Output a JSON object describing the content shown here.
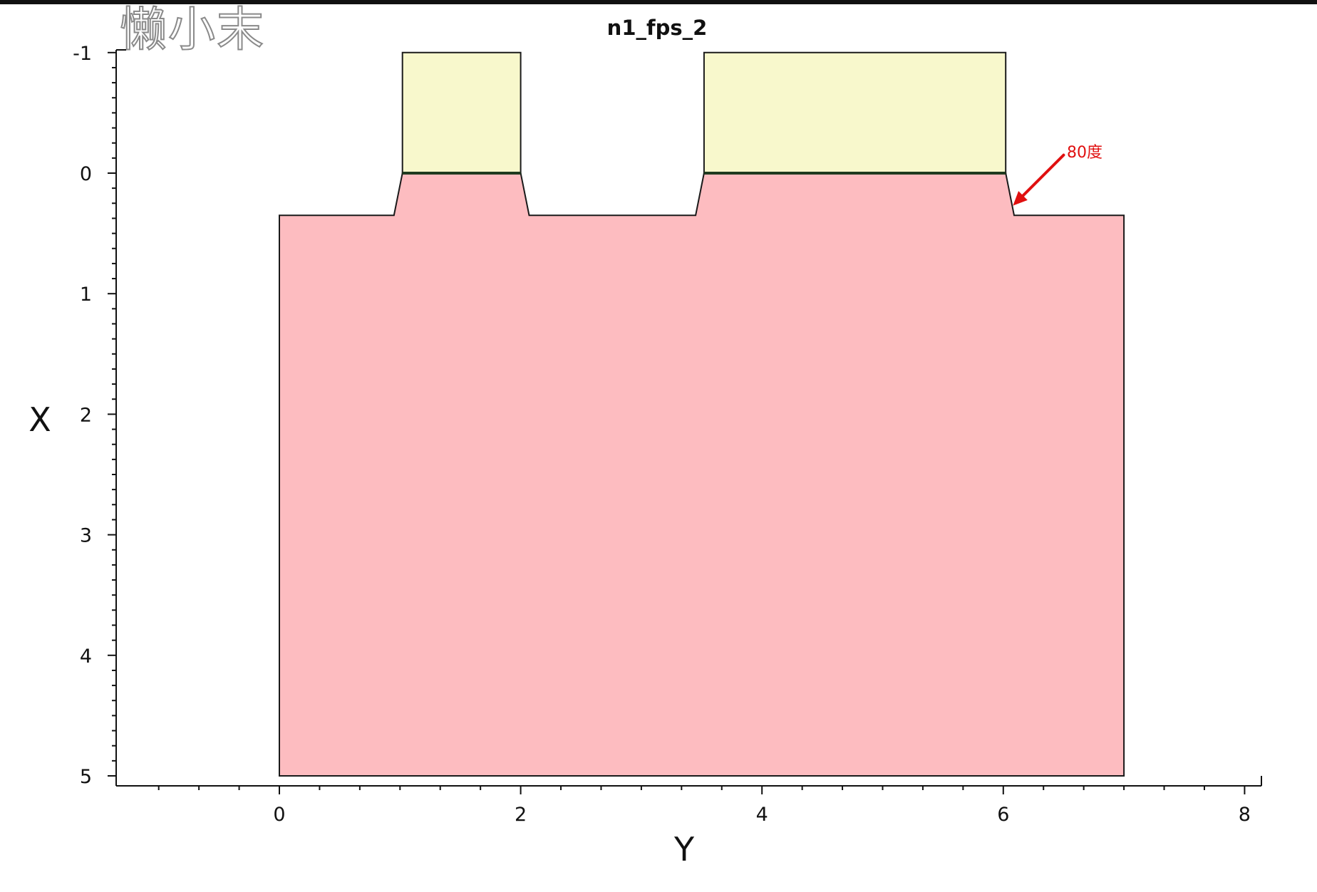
{
  "watermark": "懒小末",
  "chart_data": {
    "type": "area",
    "title": "n1_fps_2",
    "xlabel": "Y",
    "ylabel": "X",
    "xlim": [
      -1.35,
      8.2
    ],
    "ylim": [
      5.1,
      -1.05
    ],
    "x_ticks": [
      "0",
      "2",
      "4",
      "6",
      "8"
    ],
    "y_ticks": [
      "-1",
      "0",
      "1",
      "2",
      "3",
      "4",
      "5"
    ],
    "grid": false,
    "regions": [
      {
        "material": "substrate",
        "color": "#fdbcc0",
        "outline": [
          [
            0,
            5
          ],
          [
            0,
            0.35
          ],
          [
            0.95,
            0.35
          ],
          [
            1.02,
            0
          ],
          [
            2.0,
            0
          ],
          [
            2.07,
            0.35
          ],
          [
            3.45,
            0.35
          ],
          [
            3.52,
            0
          ],
          [
            6.02,
            0
          ],
          [
            6.09,
            0.35
          ],
          [
            7.0,
            0.35
          ],
          [
            7.0,
            5
          ]
        ]
      },
      {
        "material": "cap-left",
        "color": "#f8f8cc",
        "outline": [
          [
            1.02,
            -1
          ],
          [
            2.0,
            -1
          ],
          [
            2.0,
            0
          ],
          [
            1.02,
            0
          ]
        ]
      },
      {
        "material": "cap-right",
        "color": "#f8f8cc",
        "outline": [
          [
            3.52,
            -1
          ],
          [
            6.02,
            -1
          ],
          [
            6.02,
            0
          ],
          [
            3.52,
            0
          ]
        ]
      }
    ],
    "interfaces": [
      {
        "y": 0,
        "x_start": 1.02,
        "x_end": 2.0,
        "color": "#1f3b1f"
      },
      {
        "y": 0,
        "x_start": 3.52,
        "x_end": 6.02,
        "color": "#1f3b1f"
      }
    ],
    "annotation": {
      "text": "80度",
      "target": [
        6.08,
        0.27
      ],
      "tail": [
        6.5,
        -0.15
      ],
      "color": "#e01010"
    }
  }
}
